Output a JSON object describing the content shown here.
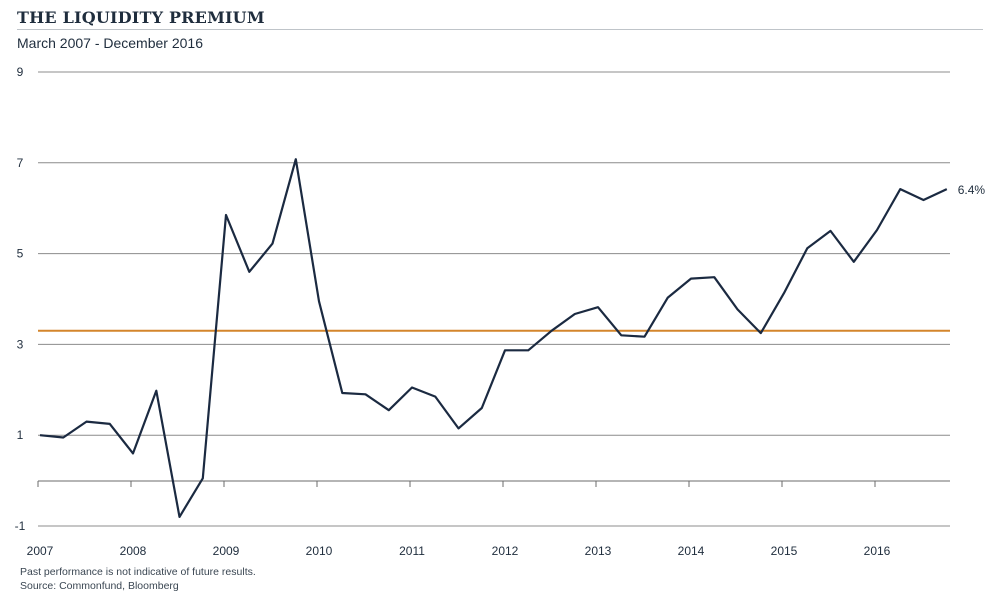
{
  "header": {
    "title": "THE LIQUIDITY PREMIUM",
    "subtitle": "March 2007 - December 2016"
  },
  "footer": {
    "disclaimer": "Past performance is not indicative of future results.",
    "source": "Source: Commonfund, Bloomberg"
  },
  "colors": {
    "series": "#1b2a41",
    "average_line": "#d4852c",
    "grid": "#8c8c8c"
  },
  "chart_data": {
    "type": "line",
    "title": "THE LIQUIDITY PREMIUM",
    "subtitle": "March 2007 - December 2016",
    "xlabel": "",
    "ylabel": "",
    "x_tick_labels": [
      "2007",
      "2008",
      "2009",
      "2010",
      "2011",
      "2012",
      "2013",
      "2014",
      "2015",
      "2016"
    ],
    "y_ticks": [
      9,
      7,
      5,
      3,
      1,
      -1
    ],
    "ylim": [
      -1,
      9
    ],
    "grid": true,
    "series": [
      {
        "values": [
          1.0,
          0.95,
          1.3,
          1.25,
          0.6,
          1.98,
          -0.8,
          0.05,
          5.85,
          4.6,
          5.22,
          7.08,
          3.95,
          1.93,
          1.9,
          1.55,
          2.05,
          1.85,
          1.15,
          1.6,
          2.87,
          2.87,
          3.3,
          3.67,
          3.82,
          3.2,
          3.17,
          4.03,
          4.45,
          4.48,
          3.77,
          3.25,
          4.13,
          5.12,
          5.5,
          4.82,
          5.52,
          6.42,
          6.18,
          6.42
        ],
        "end_label": "6.4%"
      }
    ],
    "reference_line": {
      "value": 3.3
    }
  }
}
